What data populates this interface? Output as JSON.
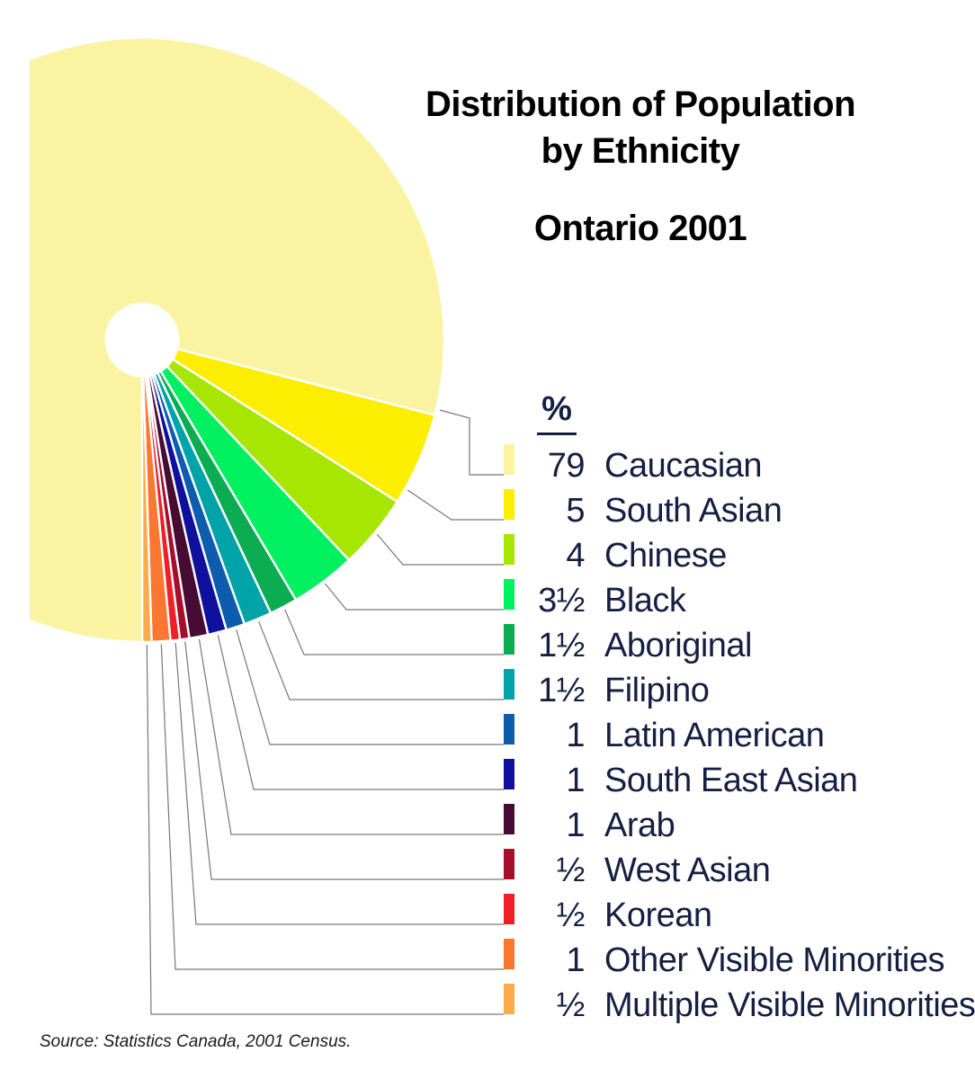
{
  "title": {
    "line1": "Distribution of Population",
    "line2": "by Ethnicity",
    "subtitle": "Ontario 2001"
  },
  "legend_header": "%",
  "source_note": "Source: Statistics Canada, 2001 Census.",
  "colors": {
    "text": "#161F42",
    "title_text": "#000000",
    "leader_line": "#777777",
    "background": "#FFFFFF"
  },
  "chart_data": {
    "type": "pie",
    "title": "Distribution of Population by Ethnicity",
    "subtitle": "Ontario 2001",
    "unit": "percent of population",
    "total": 100,
    "legend_position": "right",
    "donut_hole": true,
    "source": "Source: Statistics Canada, 2001 Census.",
    "slices": [
      {
        "label": "Caucasian",
        "display_value": "79",
        "value": 79,
        "color": "#FAF3A2"
      },
      {
        "label": "South Asian",
        "display_value": "5",
        "value": 5,
        "color": "#FCEE00"
      },
      {
        "label": "Chinese",
        "display_value": "4",
        "value": 4,
        "color": "#A6E600"
      },
      {
        "label": "Black",
        "display_value": "3½",
        "value": 3.5,
        "color": "#00F060"
      },
      {
        "label": "Aboriginal",
        "display_value": "1½",
        "value": 1.5,
        "color": "#0CAD52"
      },
      {
        "label": "Filipino",
        "display_value": "1½",
        "value": 1.5,
        "color": "#00A4A8"
      },
      {
        "label": "Latin American",
        "display_value": "1",
        "value": 1,
        "color": "#0D5CAD"
      },
      {
        "label": "South East Asian",
        "display_value": "1",
        "value": 1,
        "color": "#10109E"
      },
      {
        "label": "Arab",
        "display_value": "1",
        "value": 1,
        "color": "#470C33"
      },
      {
        "label": "West Asian",
        "display_value": "½",
        "value": 0.5,
        "color": "#A60E2B"
      },
      {
        "label": "Korean",
        "display_value": "½",
        "value": 0.5,
        "color": "#EF1F28"
      },
      {
        "label": "Other Visible Minorities",
        "display_value": "1",
        "value": 1,
        "color": "#F97730"
      },
      {
        "label": "Multiple Visible Minorities",
        "display_value": "½",
        "value": 0.5,
        "color": "#FAAB4C"
      }
    ]
  }
}
